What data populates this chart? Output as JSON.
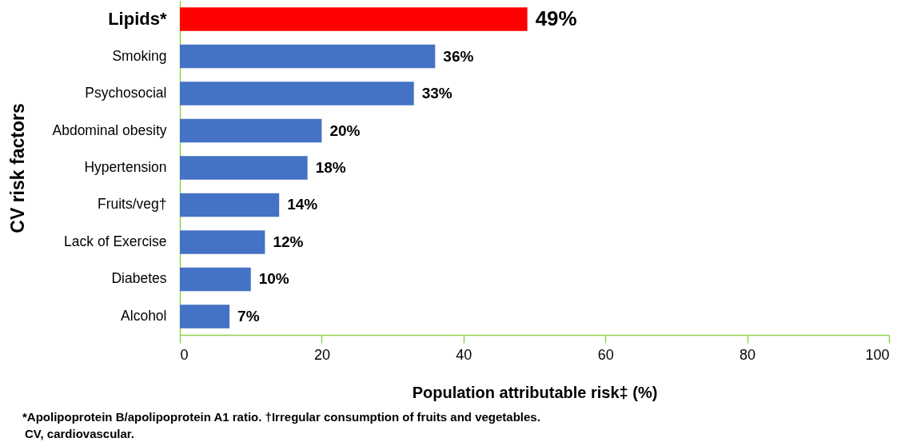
{
  "chart_data": {
    "type": "bar",
    "orientation": "horizontal",
    "categories": [
      "Lipids*",
      "Smoking",
      "Psychosocial",
      "Abdominal obesity",
      "Hypertension",
      "Fruits/veg†",
      "Lack of Exercise",
      "Diabetes",
      "Alcohol"
    ],
    "values": [
      49,
      36,
      33,
      20,
      18,
      14,
      12,
      10,
      7
    ],
    "colors": [
      "#ff0000",
      "#4472c4",
      "#4472c4",
      "#4472c4",
      "#4472c4",
      "#4472c4",
      "#4472c4",
      "#4472c4",
      "#4472c4"
    ],
    "value_labels": [
      "49%",
      "36%",
      "33%",
      "20%",
      "18%",
      "14%",
      "12%",
      "10%",
      "7%"
    ],
    "xlim": [
      0,
      100
    ],
    "xticks": [
      0,
      20,
      40,
      60,
      80,
      100
    ],
    "xlabel": "Population attributable risk‡ (%)",
    "ylabel": "CV risk factors",
    "annotations": [
      "*Apolipoprotein B/apolipoprotein A1 ratio. †Irregular consumption of fruits and vegetables.",
      "CV, cardiovascular."
    ]
  }
}
